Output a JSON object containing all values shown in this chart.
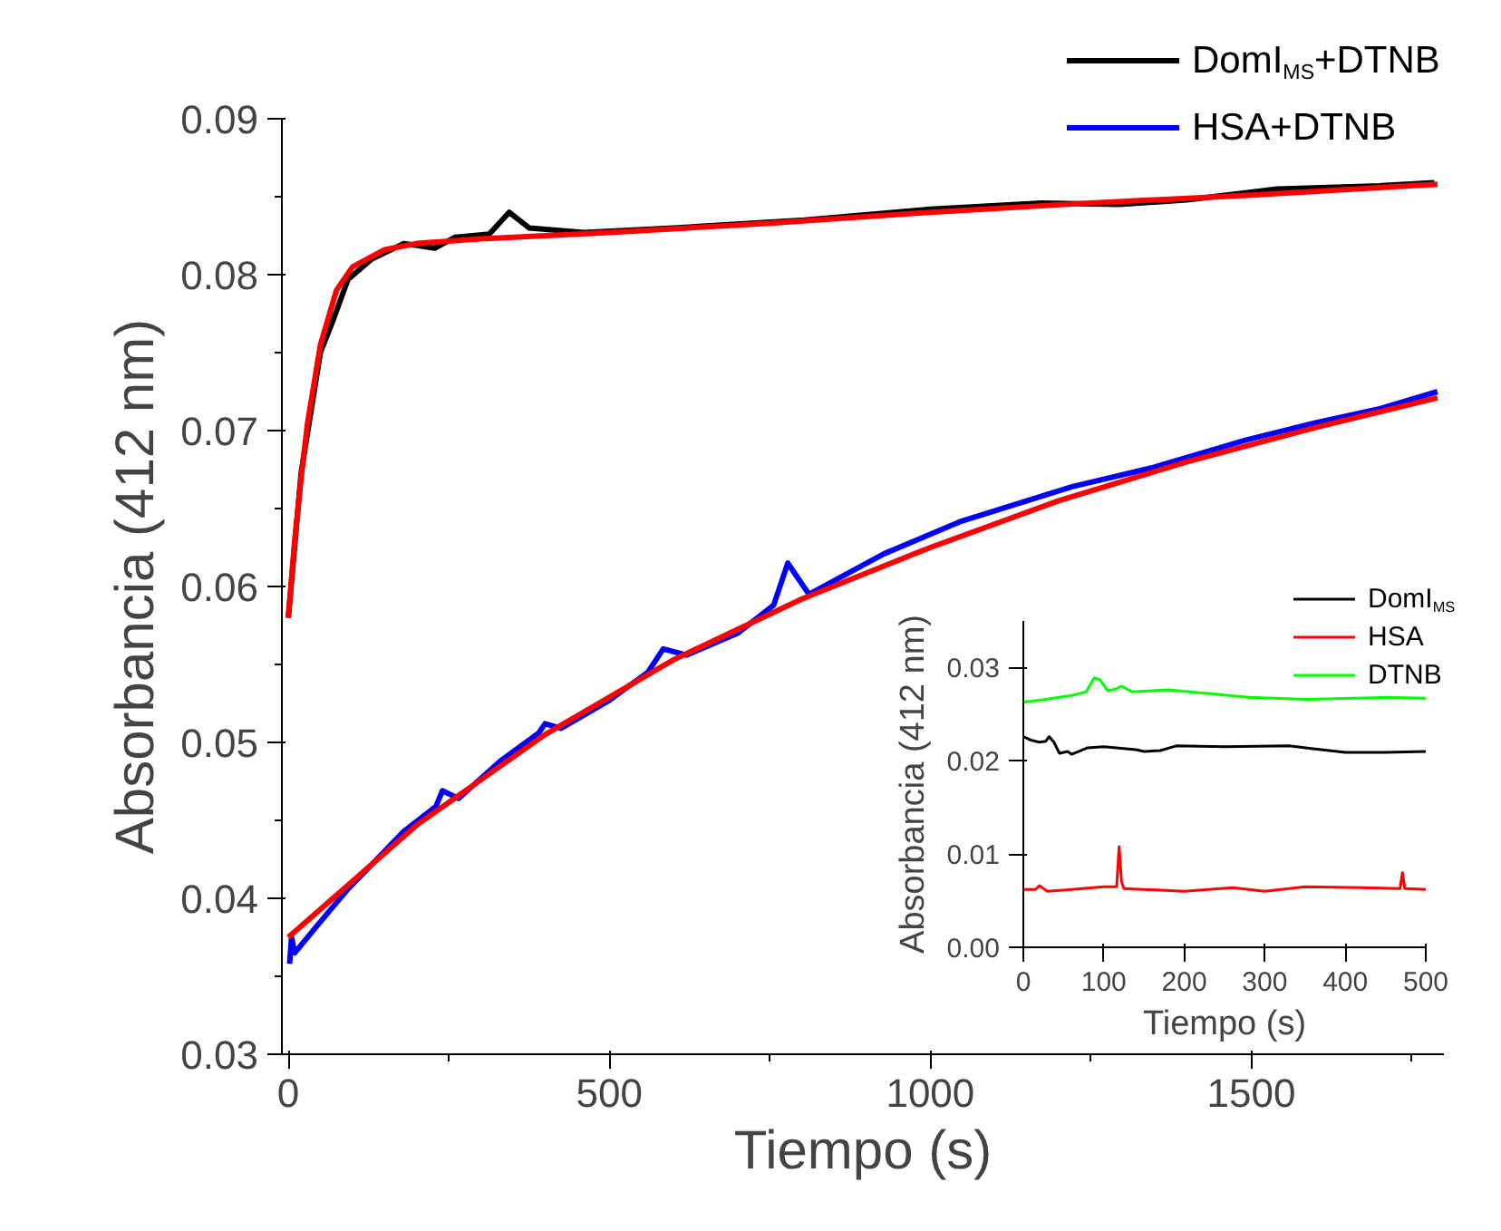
{
  "chart_data": [
    {
      "type": "line",
      "xlabel": "Tiempo (s)",
      "ylabel": "Absorbancia (412 nm)",
      "legend": "top right",
      "grid": false,
      "xlim": [
        -10,
        1800
      ],
      "ylim": [
        0.03,
        0.09
      ],
      "xticks": [
        0,
        {
          "value": 250,
          "label": null
        },
        500,
        {
          "value": 750,
          "label": null
        },
        1000,
        {
          "value": 1250,
          "label": null
        },
        1500,
        {
          "value": 1750,
          "label": null
        }
      ],
      "yticks": [
        0.03,
        {
          "value": 0.035,
          "label": null
        },
        0.04,
        {
          "value": 0.045,
          "label": null
        },
        0.05,
        {
          "value": 0.055,
          "label": null
        },
        0.06,
        {
          "value": 0.065,
          "label": null
        },
        0.07,
        {
          "value": 0.075,
          "label": null
        },
        0.08,
        {
          "value": 0.085,
          "label": null
        },
        0.09
      ],
      "series": [
        {
          "name": "DomI$_{MS}$+DTNB",
          "color": "#000000",
          "x": [
            0,
            20,
            50,
            69,
            93,
            130,
            180,
            228,
            260,
            313,
            344,
            375,
            461,
            600,
            804,
            1000,
            1173,
            1294,
            1400,
            1540,
            1700,
            1785
          ],
          "values": [
            0.058,
            0.0673,
            0.075,
            0.077,
            0.0797,
            0.081,
            0.082,
            0.0817,
            0.0824,
            0.0826,
            0.084,
            0.083,
            0.0827,
            0.083,
            0.0835,
            0.0842,
            0.0846,
            0.0845,
            0.0848,
            0.0855,
            0.0857,
            0.0859
          ]
        },
        {
          "name": "HSA+DTNB",
          "color": "#0000ff",
          "x": [
            2,
            5,
            10,
            50,
            93,
            180,
            230,
            240,
            265,
            330,
            390,
            400,
            425,
            500,
            560,
            584,
            620,
            700,
            756,
            778,
            811,
            928,
            1049,
            1221,
            1344,
            1492,
            1600,
            1700,
            1790
          ],
          "values": [
            0.0358,
            0.0375,
            0.0365,
            0.0385,
            0.0406,
            0.0443,
            0.0459,
            0.0469,
            0.0464,
            0.0488,
            0.0506,
            0.0512,
            0.0509,
            0.0527,
            0.0545,
            0.056,
            0.0556,
            0.057,
            0.0588,
            0.0615,
            0.0595,
            0.0621,
            0.0642,
            0.0664,
            0.0676,
            0.0694,
            0.0705,
            0.0714,
            0.0725
          ]
        },
        {
          "color": "#ff0000",
          "x": [
            0,
            10,
            20,
            30,
            50,
            75,
            100,
            150,
            200,
            300,
            500,
            750,
            1000,
            1250,
            1500,
            1790
          ],
          "values": [
            0.058,
            0.063,
            0.067,
            0.0705,
            0.0755,
            0.079,
            0.0805,
            0.0816,
            0.082,
            0.0823,
            0.0827,
            0.0833,
            0.084,
            0.0846,
            0.0851,
            0.0858
          ]
        },
        {
          "color": "#ff0000",
          "x": [
            0,
            200,
            400,
            600,
            800,
            1000,
            1200,
            1400,
            1600,
            1790
          ],
          "values": [
            0.0375,
            0.0447,
            0.0505,
            0.0553,
            0.0592,
            0.0625,
            0.0655,
            0.068,
            0.0702,
            0.0721
          ]
        }
      ]
    },
    {
      "type": "line",
      "xlabel": "Tiempo (s)",
      "ylabel": "Absorbancia (412 nm)",
      "legend": "top right",
      "grid": false,
      "xlim": [
        0,
        500
      ],
      "ylim": [
        0,
        0.035
      ],
      "xticks": [
        0,
        100,
        200,
        300,
        400,
        500
      ],
      "yticks": [
        {
          "value": 0,
          "label": "0.00"
        },
        0.01,
        0.02,
        0.03
      ],
      "series": [
        {
          "name": "DomI$_{MS}$",
          "color": "#000000",
          "x": [
            0,
            10,
            20,
            28,
            32,
            38,
            45,
            55,
            60,
            80,
            100,
            140,
            150,
            170,
            190,
            250,
            330,
            360,
            400,
            450,
            500
          ],
          "values": [
            0.0226,
            0.0222,
            0.022,
            0.0221,
            0.0226,
            0.022,
            0.0208,
            0.021,
            0.0207,
            0.0214,
            0.0215,
            0.0212,
            0.021,
            0.0211,
            0.0216,
            0.0215,
            0.0216,
            0.0213,
            0.0209,
            0.0209,
            0.021
          ]
        },
        {
          "name": "HSA",
          "color": "#ff0000",
          "x": [
            0,
            15,
            20,
            30,
            60,
            100,
            116,
            119,
            122,
            125,
            200,
            260,
            300,
            350,
            420,
            468,
            471,
            474,
            500
          ],
          "values": [
            0.0062,
            0.0062,
            0.0066,
            0.006,
            0.0062,
            0.0065,
            0.0065,
            0.0108,
            0.007,
            0.0063,
            0.006,
            0.0064,
            0.006,
            0.0065,
            0.0064,
            0.0063,
            0.008,
            0.0063,
            0.0062
          ]
        },
        {
          "name": "DTNB",
          "color": "#00ff00",
          "x": [
            0,
            20,
            60,
            78,
            88,
            95,
            105,
            115,
            122,
            135,
            180,
            220,
            280,
            350,
            450,
            500
          ],
          "values": [
            0.0263,
            0.0265,
            0.027,
            0.0274,
            0.0289,
            0.0287,
            0.0275,
            0.0277,
            0.028,
            0.0274,
            0.0276,
            0.0273,
            0.0268,
            0.0266,
            0.0268,
            0.0267
          ]
        }
      ]
    }
  ]
}
